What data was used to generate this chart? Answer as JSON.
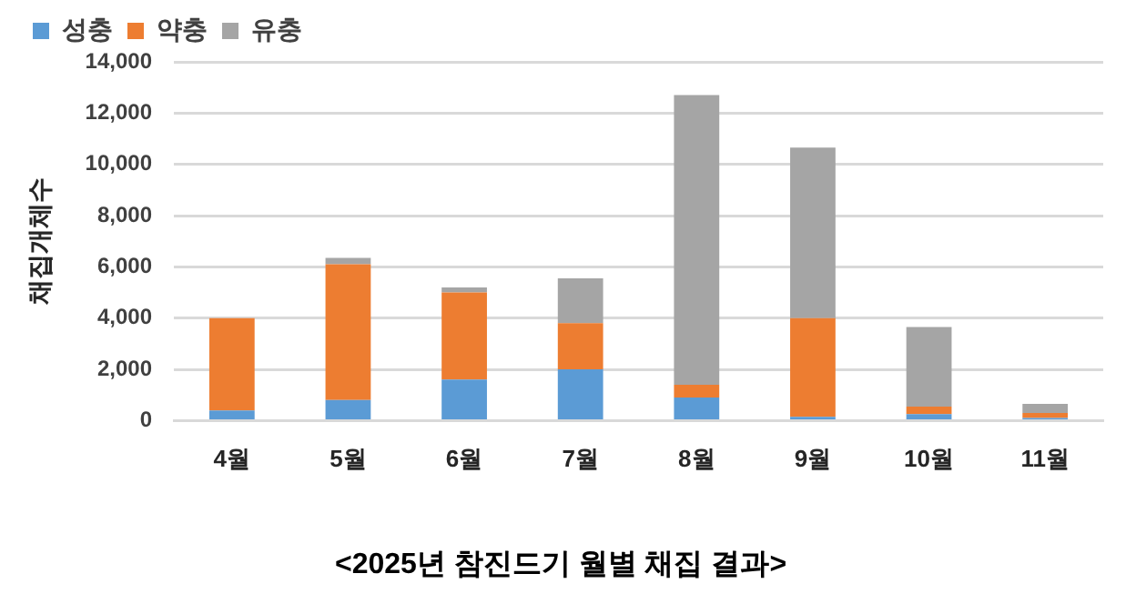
{
  "chart_data": {
    "type": "bar",
    "stacked": true,
    "title": "<2025년 참진드기 월별 채집 결과>",
    "ylabel": "채집개체수",
    "categories": [
      "4월",
      "5월",
      "6월",
      "7월",
      "8월",
      "9월",
      "10월",
      "11월"
    ],
    "series": [
      {
        "name": "성충",
        "color": "#5b9bd5",
        "values": [
          400,
          800,
          1600,
          2000,
          900,
          150,
          250,
          100
        ]
      },
      {
        "name": "약충",
        "color": "#ed7d31",
        "values": [
          3600,
          5300,
          3400,
          1800,
          500,
          3850,
          300,
          200
        ]
      },
      {
        "name": "유충",
        "color": "#a5a5a5",
        "values": [
          0,
          250,
          200,
          1750,
          11300,
          6650,
          3100,
          350
        ]
      }
    ],
    "ylim": [
      0,
      14000
    ],
    "yticks": [
      0,
      {
        "value": 2000,
        "label": "2,000"
      },
      {
        "value": 4000,
        "label": "4,000"
      },
      {
        "value": 6000,
        "label": "6,000"
      },
      {
        "value": 8000,
        "label": "8,000"
      },
      {
        "value": 10000,
        "label": "10,000"
      },
      {
        "value": 12000,
        "label": "12,000"
      },
      {
        "value": 14000,
        "label": "14,000"
      }
    ],
    "grid": "y",
    "legend": "top left"
  }
}
